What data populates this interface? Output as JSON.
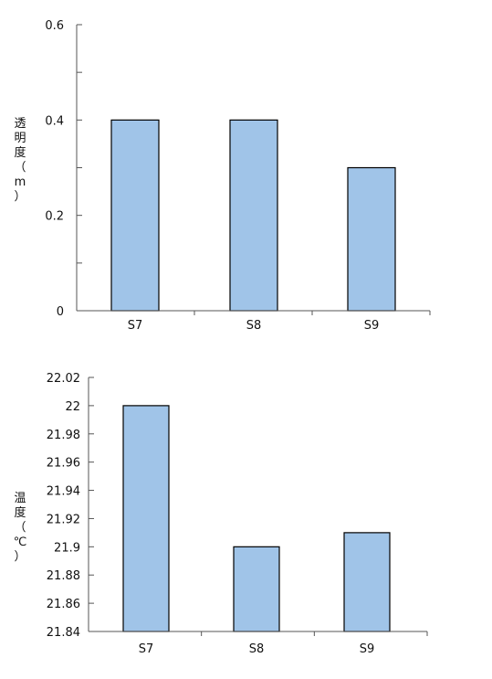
{
  "chart_data": [
    {
      "type": "bar",
      "categories": [
        "S7",
        "S8",
        "S9"
      ],
      "values": [
        0.4,
        0.4,
        0.3
      ],
      "ylabel": "透明度（m）",
      "ylim": [
        0,
        0.6
      ],
      "yticks": [
        "0",
        "0.2",
        "0.4",
        "0.6"
      ],
      "bar_color": "#a0c4e8",
      "grid": false
    },
    {
      "type": "bar",
      "categories": [
        "S7",
        "S8",
        "S9"
      ],
      "values": [
        22.0,
        21.9,
        21.91
      ],
      "ylabel": "温度（℃）",
      "ylim": [
        21.84,
        22.02
      ],
      "yticks": [
        "21.84",
        "21.86",
        "21.88",
        "21.9",
        "21.92",
        "21.94",
        "21.96",
        "21.98",
        "22",
        "22.02"
      ],
      "bar_color": "#a0c4e8",
      "grid": false
    }
  ]
}
